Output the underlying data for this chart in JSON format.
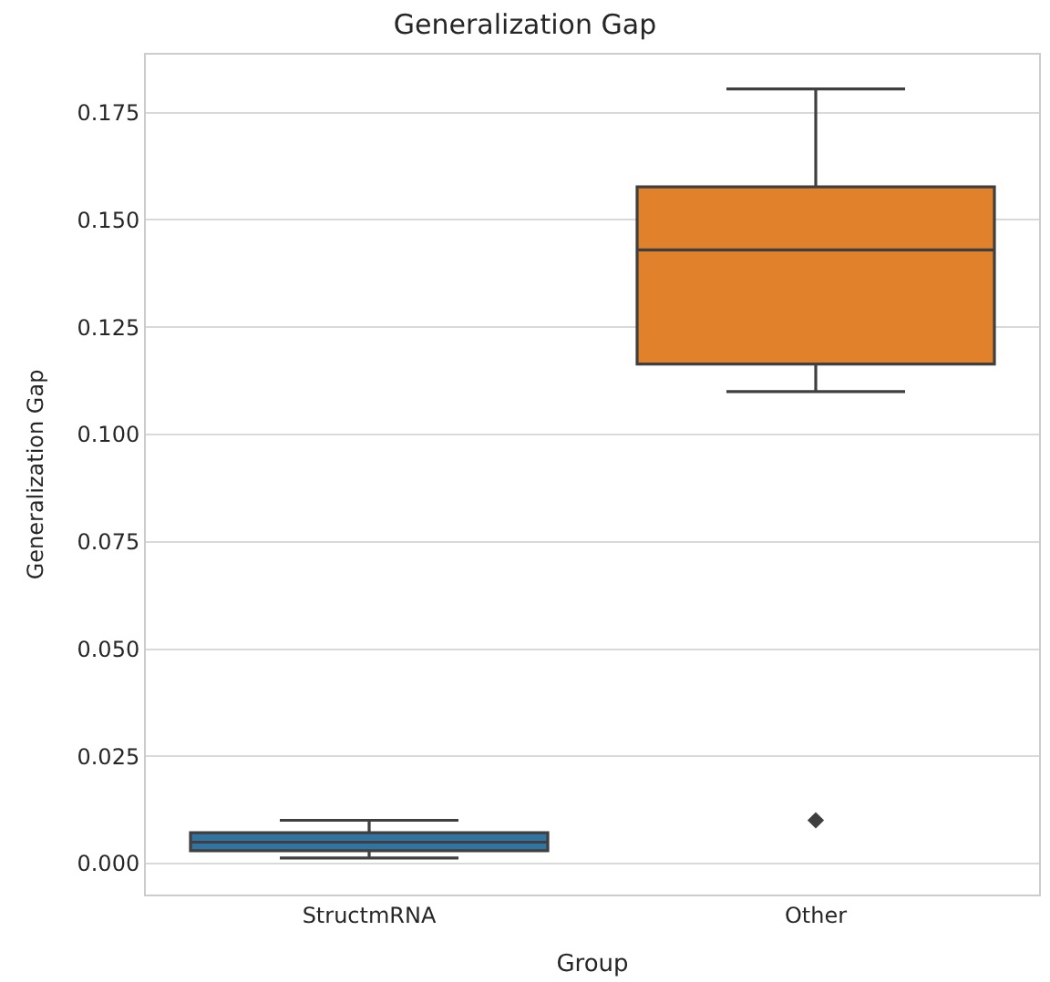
{
  "chart_data": {
    "type": "box",
    "title": "Generalization Gap",
    "xlabel": "Group",
    "ylabel": "Generalization Gap",
    "categories": [
      "StructmRNA",
      "Other"
    ],
    "colors": [
      "#3274a1",
      "#e1812c"
    ],
    "boxes": [
      {
        "low": 0.0013,
        "q1": 0.003,
        "median": 0.005,
        "q3": 0.0072,
        "high": 0.0101
      },
      {
        "low": 0.11,
        "q1": 0.1164,
        "median": 0.143,
        "q3": 0.1577,
        "high": 0.1805,
        "outliers": [
          0.0101
        ]
      }
    ],
    "ylim": [
      -0.0072,
      0.1885
    ],
    "yticks": [
      {
        "value": 0,
        "label": "0.000"
      },
      {
        "value": 0.025,
        "label": "0.025"
      },
      {
        "value": 0.05,
        "label": "0.050"
      },
      {
        "value": 0.075,
        "label": "0.075"
      },
      {
        "value": 0.1,
        "label": "0.100"
      },
      {
        "value": 0.125,
        "label": "0.125"
      },
      {
        "value": 0.15,
        "label": "0.150"
      },
      {
        "value": 0.175,
        "label": "0.175"
      }
    ],
    "grid": "y",
    "marker": "diamond"
  }
}
